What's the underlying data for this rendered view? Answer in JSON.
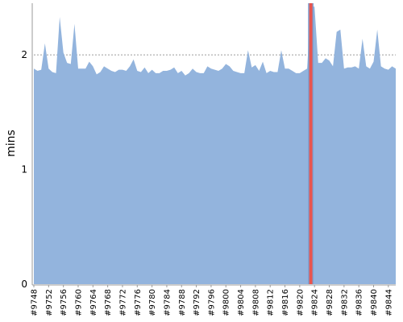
{
  "chart_data": {
    "type": "area",
    "title": "",
    "xlabel": "",
    "ylabel": "mins",
    "ylim": [
      0,
      2.45
    ],
    "yticks": [
      0,
      1,
      2
    ],
    "grid": "horizontal dashed at 1 and 2",
    "colors": {
      "area": "#93b4dd",
      "marker": "#e8544e",
      "grid": "#7a7a7a",
      "axis": "#333333"
    },
    "x_start_build": 9748,
    "x_end_build": 9846,
    "x_tick_labels": [
      "#9748",
      "#9752",
      "#9756",
      "#9760",
      "#9764",
      "#9768",
      "#9772",
      "#9776",
      "#9780",
      "#9784",
      "#9788",
      "#9792",
      "#9796",
      "#9800",
      "#9804",
      "#9808",
      "#9812",
      "#9816",
      "#9820",
      "#9824",
      "#9828",
      "#9832",
      "#9836",
      "#9840",
      "#9844"
    ],
    "x": [
      9748,
      9749,
      9750,
      9751,
      9752,
      9753,
      9754,
      9755,
      9756,
      9757,
      9758,
      9759,
      9760,
      9761,
      9762,
      9763,
      9764,
      9765,
      9766,
      9767,
      9768,
      9769,
      9770,
      9771,
      9772,
      9773,
      9774,
      9775,
      9776,
      9777,
      9778,
      9779,
      9780,
      9781,
      9782,
      9783,
      9784,
      9785,
      9786,
      9787,
      9788,
      9789,
      9790,
      9791,
      9792,
      9793,
      9794,
      9795,
      9796,
      9797,
      9798,
      9799,
      9800,
      9801,
      9802,
      9803,
      9804,
      9805,
      9806,
      9807,
      9808,
      9809,
      9810,
      9811,
      9812,
      9813,
      9814,
      9815,
      9816,
      9817,
      9818,
      9819,
      9820,
      9821,
      9822,
      9823,
      9824,
      9825,
      9826,
      9827,
      9828,
      9829,
      9830,
      9831,
      9832,
      9833,
      9834,
      9835,
      9836,
      9837,
      9838,
      9839,
      9840,
      9841,
      9842,
      9843,
      9844,
      9845,
      9846
    ],
    "values": [
      1.88,
      1.86,
      1.87,
      2.1,
      1.88,
      1.85,
      1.84,
      2.33,
      2.02,
      1.93,
      1.92,
      2.27,
      1.88,
      1.88,
      1.88,
      1.94,
      1.9,
      1.83,
      1.85,
      1.9,
      1.88,
      1.86,
      1.85,
      1.87,
      1.87,
      1.86,
      1.9,
      1.96,
      1.86,
      1.85,
      1.89,
      1.84,
      1.87,
      1.84,
      1.84,
      1.86,
      1.86,
      1.87,
      1.89,
      1.84,
      1.86,
      1.82,
      1.84,
      1.88,
      1.85,
      1.84,
      1.84,
      1.9,
      1.88,
      1.87,
      1.86,
      1.88,
      1.92,
      1.9,
      1.86,
      1.85,
      1.84,
      1.84,
      2.04,
      1.89,
      1.91,
      1.86,
      1.94,
      1.84,
      1.86,
      1.85,
      1.85,
      2.04,
      1.88,
      1.88,
      1.86,
      1.84,
      1.84,
      1.86,
      1.88,
      2.42,
      2.42,
      1.93,
      1.93,
      1.97,
      1.95,
      1.9,
      2.2,
      2.22,
      1.88,
      1.89,
      1.89,
      1.9,
      1.88,
      2.14,
      1.9,
      1.88,
      1.94,
      2.22,
      1.9,
      1.88,
      1.87,
      1.9,
      1.88
    ],
    "marker_build": 9823
  }
}
